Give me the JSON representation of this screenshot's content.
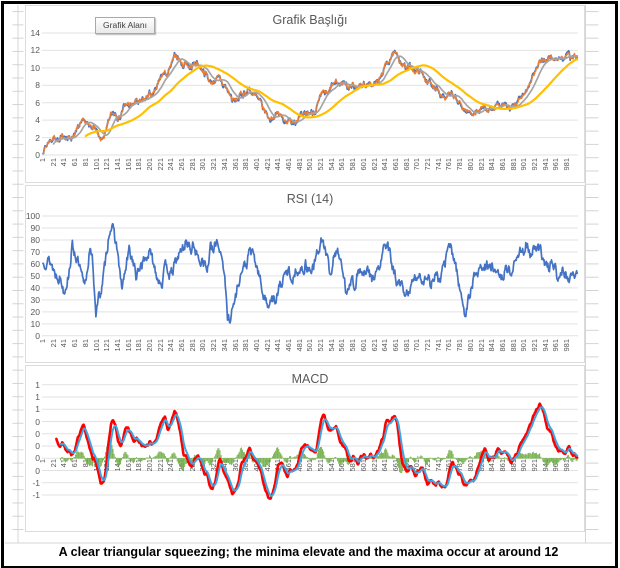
{
  "caption": {
    "text": "A clear triangular squeezing; the minima elevate and the maxima occur at around 12"
  },
  "ui_colors": {
    "grid": "#E2E2E2",
    "axis_text": "#595959",
    "sheet_line": "#D4D4D4",
    "frame": "#000000"
  },
  "x_axis": {
    "labels": [
      "1",
      "21",
      "41",
      "61",
      "81",
      "101",
      "121",
      "141",
      "161",
      "181",
      "201",
      "221",
      "241",
      "261",
      "281",
      "301",
      "321",
      "341",
      "361",
      "381",
      "401",
      "421",
      "441",
      "461",
      "481",
      "501",
      "521",
      "541",
      "561",
      "581",
      "601",
      "621",
      "641",
      "661",
      "681",
      "701",
      "721",
      "741",
      "761",
      "781",
      "801",
      "821",
      "841",
      "861",
      "881",
      "901",
      "921",
      "941",
      "961",
      "981"
    ]
  },
  "chart_data": [
    {
      "type": "line",
      "title": "Grafik Başlığı",
      "tooltip": "Grafik Alanı",
      "y_ticks": [
        "14",
        "12",
        "10",
        "8",
        "6",
        "4",
        "2",
        "0"
      ],
      "ylim": [
        0,
        14
      ],
      "xlim": [
        1,
        1000
      ],
      "grid": true,
      "legend": "none",
      "series": [
        {
          "name": "price-range",
          "color": "#4472C4"
        },
        {
          "name": "price-close",
          "color": "#ED7D31"
        },
        {
          "name": "sma-fast",
          "color": "#A5A5A5",
          "window": 21
        },
        {
          "name": "sma-slow",
          "color": "#FFC000",
          "window": 81
        }
      ],
      "noise": {
        "amp": 0.5,
        "decay": 0.72,
        "seed": 7,
        "range_amp": 0.34,
        "range_seed": 11
      },
      "price_keypoints": [
        [
          1,
          0.4
        ],
        [
          12,
          1.6
        ],
        [
          22,
          2.1
        ],
        [
          32,
          1.6
        ],
        [
          42,
          2.2
        ],
        [
          52,
          1.9
        ],
        [
          62,
          2.7
        ],
        [
          78,
          3.8
        ],
        [
          88,
          3.1
        ],
        [
          96,
          3.5
        ],
        [
          103,
          2.3
        ],
        [
          108,
          1.4
        ],
        [
          118,
          2.4
        ],
        [
          128,
          4.6
        ],
        [
          136,
          4.9
        ],
        [
          144,
          4.4
        ],
        [
          152,
          5.4
        ],
        [
          160,
          5.9
        ],
        [
          168,
          5.6
        ],
        [
          176,
          6.3
        ],
        [
          184,
          5.9
        ],
        [
          192,
          6.4
        ],
        [
          200,
          7.0
        ],
        [
          208,
          6.8
        ],
        [
          216,
          8.0
        ],
        [
          226,
          9.4
        ],
        [
          234,
          9.2
        ],
        [
          242,
          10.5
        ],
        [
          250,
          11.4
        ],
        [
          256,
          11.1
        ],
        [
          262,
          10.3
        ],
        [
          268,
          10.7
        ],
        [
          276,
          10.0
        ],
        [
          284,
          10.4
        ],
        [
          290,
          10.6
        ],
        [
          298,
          9.9
        ],
        [
          306,
          9.4
        ],
        [
          314,
          8.2
        ],
        [
          322,
          8.6
        ],
        [
          330,
          8.8
        ],
        [
          338,
          8.1
        ],
        [
          346,
          7.5
        ],
        [
          354,
          6.4
        ],
        [
          362,
          6.2
        ],
        [
          370,
          6.9
        ],
        [
          378,
          7.2
        ],
        [
          386,
          7.6
        ],
        [
          394,
          6.9
        ],
        [
          402,
          6.5
        ],
        [
          410,
          5.6
        ],
        [
          418,
          4.8
        ],
        [
          424,
          4.2
        ],
        [
          432,
          4.5
        ],
        [
          440,
          4.8
        ],
        [
          448,
          4.4
        ],
        [
          456,
          4.0
        ],
        [
          464,
          3.8
        ],
        [
          472,
          4.1
        ],
        [
          480,
          4.4
        ],
        [
          488,
          4.2
        ],
        [
          496,
          4.8
        ],
        [
          504,
          4.8
        ],
        [
          512,
          5.4
        ],
        [
          520,
          6.5
        ],
        [
          527,
          7.2
        ],
        [
          534,
          6.9
        ],
        [
          541,
          7.8
        ],
        [
          548,
          8.3
        ],
        [
          556,
          8.0
        ],
        [
          564,
          8.4
        ],
        [
          572,
          7.8
        ],
        [
          580,
          8.1
        ],
        [
          590,
          7.9
        ],
        [
          600,
          8.2
        ],
        [
          610,
          7.9
        ],
        [
          620,
          8.1
        ],
        [
          628,
          8.4
        ],
        [
          636,
          9.4
        ],
        [
          644,
          10.6
        ],
        [
          652,
          11.3
        ],
        [
          658,
          11.5
        ],
        [
          666,
          11.1
        ],
        [
          674,
          10.4
        ],
        [
          682,
          9.9
        ],
        [
          690,
          10.2
        ],
        [
          698,
          9.5
        ],
        [
          706,
          9.7
        ],
        [
          714,
          8.9
        ],
        [
          722,
          8.4
        ],
        [
          730,
          7.7
        ],
        [
          738,
          7.9
        ],
        [
          746,
          7.1
        ],
        [
          754,
          6.5
        ],
        [
          762,
          6.9
        ],
        [
          770,
          6.5
        ],
        [
          778,
          6.1
        ],
        [
          786,
          5.4
        ],
        [
          794,
          5.1
        ],
        [
          802,
          4.8
        ],
        [
          810,
          4.9
        ],
        [
          818,
          5.2
        ],
        [
          826,
          5.6
        ],
        [
          834,
          5.4
        ],
        [
          842,
          5.2
        ],
        [
          850,
          5.6
        ],
        [
          858,
          5.3
        ],
        [
          866,
          5.7
        ],
        [
          874,
          5.4
        ],
        [
          882,
          5.4
        ],
        [
          890,
          6.0
        ],
        [
          898,
          6.9
        ],
        [
          906,
          7.7
        ],
        [
          914,
          8.6
        ],
        [
          922,
          9.6
        ],
        [
          930,
          10.4
        ],
        [
          938,
          11.1
        ],
        [
          944,
          10.8
        ],
        [
          950,
          11.2
        ],
        [
          958,
          10.9
        ],
        [
          966,
          11.3
        ],
        [
          974,
          11.1
        ],
        [
          982,
          11.4
        ],
        [
          990,
          11.1
        ],
        [
          1000,
          11.2
        ]
      ]
    },
    {
      "type": "line",
      "title": "RSI (14)",
      "y_ticks": [
        "100",
        "90",
        "80",
        "70",
        "60",
        "50",
        "40",
        "30",
        "20",
        "10",
        "0"
      ],
      "ylim": [
        0,
        100
      ],
      "xlim": [
        1,
        1000
      ],
      "grid": true,
      "legend": "none",
      "series": [
        {
          "name": "rsi",
          "color": "#4472C4"
        }
      ],
      "noise": {
        "amp": 8,
        "decay": 0.6,
        "seed": 13,
        "clip": [
          10,
          96
        ]
      },
      "rsi_keypoints": [
        [
          1,
          60
        ],
        [
          8,
          65
        ],
        [
          16,
          61
        ],
        [
          24,
          52
        ],
        [
          32,
          50
        ],
        [
          40,
          38
        ],
        [
          48,
          50
        ],
        [
          56,
          75
        ],
        [
          62,
          68
        ],
        [
          70,
          55
        ],
        [
          78,
          40
        ],
        [
          84,
          55
        ],
        [
          88,
          74
        ],
        [
          94,
          60
        ],
        [
          100,
          20
        ],
        [
          106,
          33
        ],
        [
          112,
          42
        ],
        [
          118,
          62
        ],
        [
          124,
          85
        ],
        [
          128,
          93
        ],
        [
          134,
          84
        ],
        [
          140,
          72
        ],
        [
          148,
          38
        ],
        [
          156,
          56
        ],
        [
          162,
          71
        ],
        [
          170,
          62
        ],
        [
          176,
          47
        ],
        [
          184,
          60
        ],
        [
          192,
          64
        ],
        [
          200,
          70
        ],
        [
          208,
          60
        ],
        [
          216,
          49
        ],
        [
          224,
          45
        ],
        [
          232,
          60
        ],
        [
          240,
          49
        ],
        [
          248,
          60
        ],
        [
          256,
          68
        ],
        [
          264,
          74
        ],
        [
          270,
          80
        ],
        [
          278,
          71
        ],
        [
          284,
          76
        ],
        [
          292,
          62
        ],
        [
          300,
          66
        ],
        [
          308,
          54
        ],
        [
          314,
          73
        ],
        [
          320,
          69
        ],
        [
          326,
          80
        ],
        [
          334,
          70
        ],
        [
          340,
          55
        ],
        [
          346,
          14
        ],
        [
          352,
          17
        ],
        [
          360,
          30
        ],
        [
          368,
          48
        ],
        [
          374,
          55
        ],
        [
          382,
          60
        ],
        [
          388,
          72
        ],
        [
          396,
          64
        ],
        [
          404,
          52
        ],
        [
          412,
          36
        ],
        [
          420,
          26
        ],
        [
          428,
          33
        ],
        [
          436,
          27
        ],
        [
          444,
          42
        ],
        [
          452,
          48
        ],
        [
          460,
          55
        ],
        [
          468,
          47
        ],
        [
          476,
          58
        ],
        [
          484,
          52
        ],
        [
          492,
          60
        ],
        [
          500,
          55
        ],
        [
          508,
          58
        ],
        [
          516,
          72
        ],
        [
          522,
          80
        ],
        [
          530,
          70
        ],
        [
          538,
          50
        ],
        [
          546,
          68
        ],
        [
          552,
          74
        ],
        [
          560,
          55
        ],
        [
          568,
          38
        ],
        [
          576,
          48
        ],
        [
          584,
          42
        ],
        [
          592,
          55
        ],
        [
          600,
          50
        ],
        [
          608,
          53
        ],
        [
          616,
          48
        ],
        [
          624,
          52
        ],
        [
          632,
          58
        ],
        [
          640,
          78
        ],
        [
          648,
          70
        ],
        [
          656,
          55
        ],
        [
          664,
          43
        ],
        [
          672,
          40
        ],
        [
          678,
          30
        ],
        [
          686,
          40
        ],
        [
          694,
          44
        ],
        [
          702,
          52
        ],
        [
          710,
          47
        ],
        [
          718,
          50
        ],
        [
          726,
          44
        ],
        [
          734,
          50
        ],
        [
          742,
          46
        ],
        [
          750,
          55
        ],
        [
          758,
          72
        ],
        [
          764,
          74
        ],
        [
          770,
          64
        ],
        [
          776,
          52
        ],
        [
          782,
          35
        ],
        [
          788,
          25
        ],
        [
          792,
          17
        ],
        [
          798,
          32
        ],
        [
          806,
          48
        ],
        [
          814,
          53
        ],
        [
          822,
          57
        ],
        [
          830,
          60
        ],
        [
          838,
          55
        ],
        [
          846,
          60
        ],
        [
          854,
          46
        ],
        [
          862,
          52
        ],
        [
          870,
          57
        ],
        [
          878,
          53
        ],
        [
          886,
          62
        ],
        [
          892,
          74
        ],
        [
          898,
          70
        ],
        [
          904,
          77
        ],
        [
          912,
          66
        ],
        [
          918,
          71
        ],
        [
          926,
          72
        ],
        [
          934,
          67
        ],
        [
          940,
          60
        ],
        [
          948,
          56
        ],
        [
          956,
          61
        ],
        [
          962,
          50
        ],
        [
          970,
          58
        ],
        [
          978,
          53
        ],
        [
          986,
          46
        ],
        [
          994,
          54
        ],
        [
          1000,
          50
        ]
      ]
    },
    {
      "type": "line",
      "title": "MACD",
      "y_ticks": [
        "1",
        "1",
        "1",
        "0",
        "0",
        "0",
        "0",
        "0",
        "-1",
        "-1"
      ],
      "xlim": [
        1,
        1000
      ],
      "grid": true,
      "legend": "none",
      "derived_from": "price-close",
      "derive": {
        "fast": 12,
        "slow": 26,
        "signal": 9
      },
      "series": [
        {
          "name": "macd-line",
          "color": "#FF0000"
        },
        {
          "name": "signal-line",
          "color": "#3EA6E0"
        },
        {
          "name": "histogram",
          "color": "#70AD47"
        }
      ]
    }
  ]
}
